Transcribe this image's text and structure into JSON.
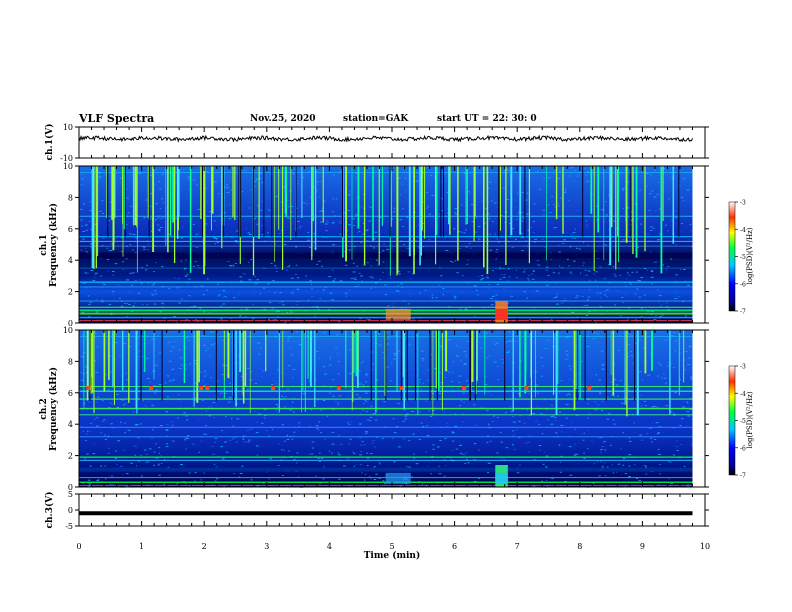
{
  "header": {
    "title": "VLF Spectra",
    "date": "Nov.25, 2020",
    "station": "station=GAK",
    "start": "start  UT =   22: 30: 0"
  },
  "chart_data": [
    {
      "type": "line",
      "ylabel": "ch.1(V)",
      "ylim": [
        -10,
        10
      ],
      "yticks": [
        "10",
        "-10"
      ],
      "xlim": [
        0,
        10
      ],
      "description_level": 2.5,
      "color": "#000000"
    },
    {
      "type": "heatmap",
      "ylabel_top": "ch.1",
      "ylabel": "Frequency (kHz)",
      "ylim": [
        0,
        10
      ],
      "yticks": [
        "0",
        "2",
        "4",
        "6",
        "8",
        "10"
      ],
      "xlim": [
        0,
        10
      ],
      "colorbar": {
        "label": "log(PSD)(V²/Hz)",
        "range": [
          -7,
          -3
        ],
        "ticks": [
          "-3",
          "-4",
          "-5",
          "-6",
          "-7"
        ]
      }
    },
    {
      "type": "heatmap",
      "ylabel_top": "ch.2",
      "ylabel": "Frequency (kHz)",
      "ylim": [
        0,
        10
      ],
      "yticks": [
        "0",
        "2",
        "4",
        "6",
        "8",
        "10"
      ],
      "xlim": [
        0,
        10
      ],
      "colorbar": {
        "label": "log(PSD)(V²/Hz)",
        "range": [
          -7,
          -3
        ],
        "ticks": [
          "-3",
          "-4",
          "-5",
          "-6",
          "-7"
        ]
      }
    },
    {
      "type": "line",
      "ylabel": "ch.3(V)",
      "ylim": [
        -5,
        5
      ],
      "yticks": [
        "5",
        "0",
        "-5"
      ],
      "xlim": [
        0,
        10
      ],
      "constant_value": -1.0,
      "color": "#000000"
    }
  ],
  "xaxis": {
    "label": "Time (min)",
    "ticks": [
      "0",
      "1",
      "2",
      "3",
      "4",
      "5",
      "6",
      "7",
      "8",
      "9",
      "10"
    ]
  },
  "data_end_min": 9.8
}
